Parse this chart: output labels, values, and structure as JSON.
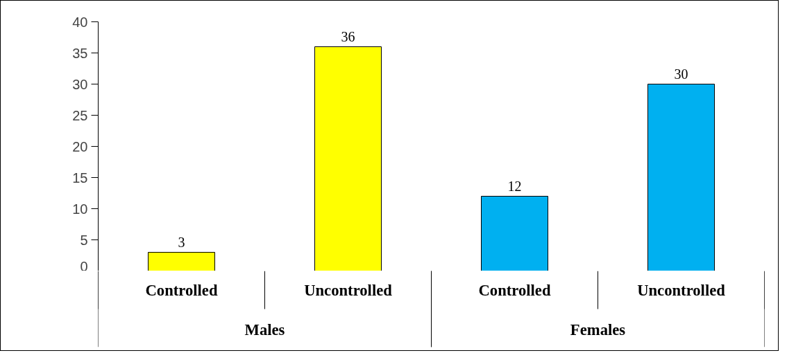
{
  "chart_data": {
    "type": "bar",
    "categories": [
      "Controlled",
      "Uncontrolled",
      "Controlled",
      "Uncontrolled"
    ],
    "series": [
      {
        "color": "#ffff00",
        "values": [
          3,
          36,
          null,
          null
        ]
      },
      {
        "color": "#00b0f0",
        "values": [
          null,
          null,
          12,
          30
        ]
      }
    ],
    "annotations": [
      "Males",
      "Females"
    ],
    "ylim": [
      0,
      40
    ],
    "yticks": [
      0,
      5,
      10,
      15,
      20,
      25,
      30,
      35,
      40
    ],
    "data_labels": true,
    "grid": false
  }
}
